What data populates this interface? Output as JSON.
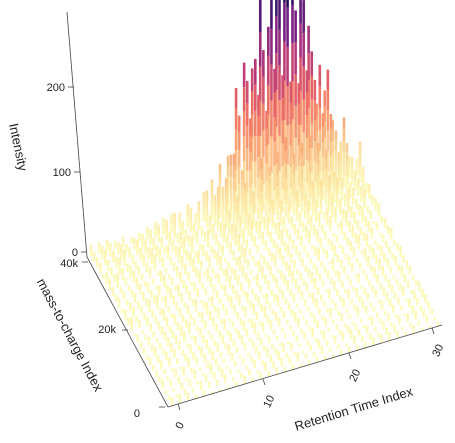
{
  "chart_data": {
    "type": "bar3d",
    "x_axis": {
      "label": "Retention Time Index",
      "ticks": [
        0,
        10,
        20,
        30
      ],
      "range": [
        0,
        34
      ]
    },
    "y_axis": {
      "label": "mass-to-charge Index",
      "ticks": [
        0,
        20000,
        40000
      ],
      "tick_labels": [
        "0",
        "20k",
        "40k"
      ],
      "range": [
        0,
        42000
      ]
    },
    "z_axis": {
      "label": "Intensity",
      "ticks": [
        0,
        100,
        200
      ],
      "range": [
        0,
        280
      ]
    },
    "colormap": "magma",
    "peak": {
      "x": 24,
      "y": 41000,
      "max_intensity": 275
    },
    "grid": false
  }
}
